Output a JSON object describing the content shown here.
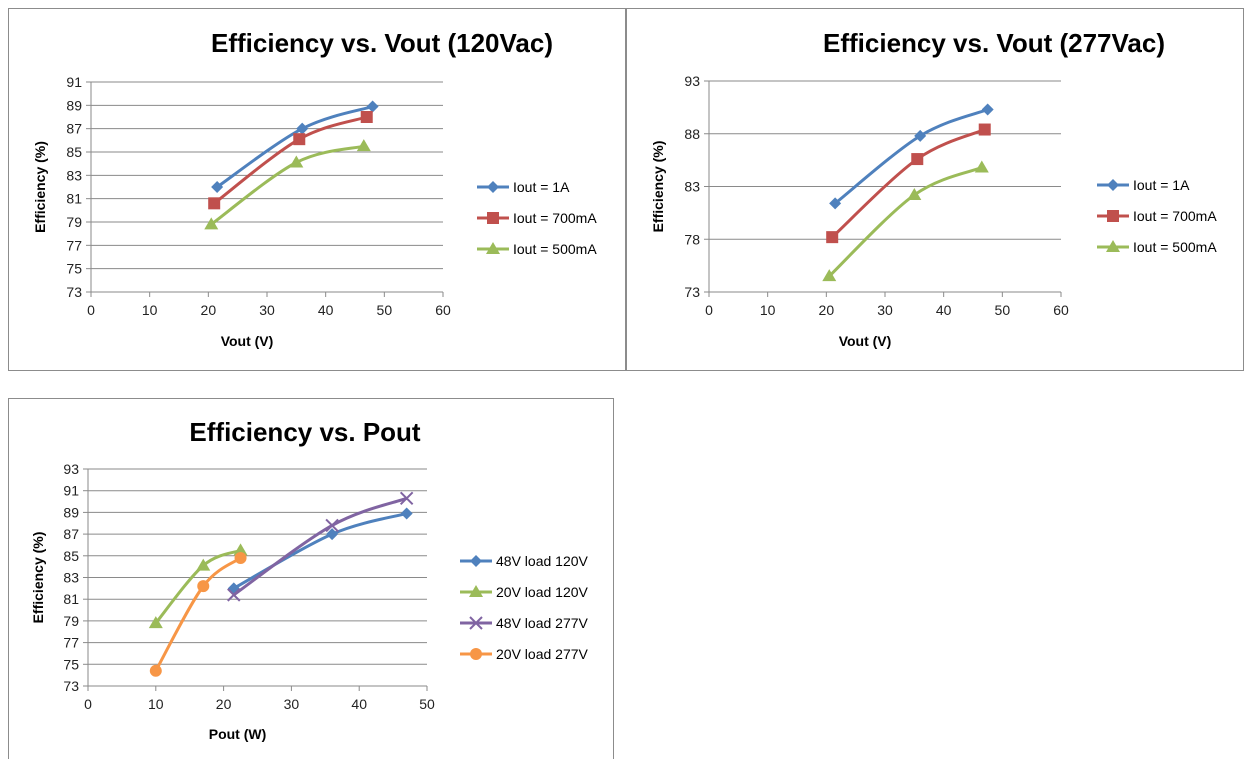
{
  "chart_data": [
    {
      "type": "line",
      "title": "Efficiency vs. Vout (120Vac)",
      "xlabel": "Vout (V)",
      "ylabel": "Efficiency (%)",
      "xlim": [
        0,
        60
      ],
      "ylim": [
        73,
        91
      ],
      "xticks": [
        "0",
        "10",
        "20",
        "30",
        "40",
        "50",
        "60"
      ],
      "yticks": [
        "73",
        "75",
        "77",
        "79",
        "81",
        "83",
        "85",
        "87",
        "89",
        "91"
      ],
      "grid": "horizontal",
      "legend": "right",
      "series": [
        {
          "name": "Iout = 1A",
          "color": "#4F81BD",
          "marker": "diamond",
          "points": [
            [
              21.5,
              82.0
            ],
            [
              36.0,
              87.0
            ],
            [
              48.0,
              88.9
            ]
          ]
        },
        {
          "name": "Iout = 700mA",
          "color": "#C0504D",
          "marker": "square",
          "points": [
            [
              21.0,
              80.6
            ],
            [
              35.5,
              86.1
            ],
            [
              47.0,
              88.0
            ]
          ]
        },
        {
          "name": "Iout = 500mA",
          "color": "#9BBB59",
          "marker": "triangle",
          "points": [
            [
              20.5,
              78.8
            ],
            [
              35.0,
              84.1
            ],
            [
              46.5,
              85.5
            ]
          ]
        }
      ]
    },
    {
      "type": "line",
      "title": "Efficiency vs. Vout (277Vac)",
      "xlabel": "Vout (V)",
      "ylabel": "Efficiency (%)",
      "xlim": [
        0,
        60
      ],
      "ylim": [
        73,
        93
      ],
      "xticks": [
        "0",
        "10",
        "20",
        "30",
        "40",
        "50",
        "60"
      ],
      "yticks": [
        "73",
        "78",
        "83",
        "88",
        "93"
      ],
      "grid": "horizontal",
      "legend": "right",
      "series": [
        {
          "name": "Iout = 1A",
          "color": "#4F81BD",
          "marker": "diamond",
          "points": [
            [
              21.5,
              81.4
            ],
            [
              36.0,
              87.8
            ],
            [
              47.5,
              90.3
            ]
          ]
        },
        {
          "name": "Iout = 700mA",
          "color": "#C0504D",
          "marker": "square",
          "points": [
            [
              21.0,
              78.2
            ],
            [
              35.5,
              85.6
            ],
            [
              47.0,
              88.4
            ]
          ]
        },
        {
          "name": "Iout = 500mA",
          "color": "#9BBB59",
          "marker": "triangle",
          "points": [
            [
              20.5,
              74.5
            ],
            [
              35.0,
              82.2
            ],
            [
              46.5,
              84.8
            ]
          ]
        }
      ]
    },
    {
      "type": "line",
      "title": "Efficiency vs. Pout",
      "xlabel": "Pout (W)",
      "ylabel": "Efficiency (%)",
      "xlim": [
        0,
        50
      ],
      "ylim": [
        73,
        93
      ],
      "xticks": [
        "0",
        "10",
        "20",
        "30",
        "40",
        "50"
      ],
      "yticks": [
        "73",
        "75",
        "77",
        "79",
        "81",
        "83",
        "85",
        "87",
        "89",
        "91",
        "93"
      ],
      "grid": "horizontal",
      "legend": "right",
      "series": [
        {
          "name": "48V load 120V",
          "color": "#4F81BD",
          "marker": "diamond",
          "points": [
            [
              21.5,
              82.0
            ],
            [
              36.0,
              87.0
            ],
            [
              47.0,
              88.9
            ]
          ]
        },
        {
          "name": "20V load 120V",
          "color": "#9BBB59",
          "marker": "triangle",
          "points": [
            [
              10.0,
              78.8
            ],
            [
              17.0,
              84.1
            ],
            [
              22.5,
              85.5
            ]
          ]
        },
        {
          "name": "48V load 277V",
          "color": "#8064A2",
          "marker": "x",
          "points": [
            [
              21.5,
              81.4
            ],
            [
              36.0,
              87.8
            ],
            [
              47.0,
              90.3
            ]
          ]
        },
        {
          "name": "20V load 277V",
          "color": "#F79646",
          "marker": "circle",
          "points": [
            [
              10.0,
              74.4
            ],
            [
              17.0,
              82.2
            ],
            [
              22.5,
              84.8
            ]
          ]
        }
      ]
    }
  ]
}
